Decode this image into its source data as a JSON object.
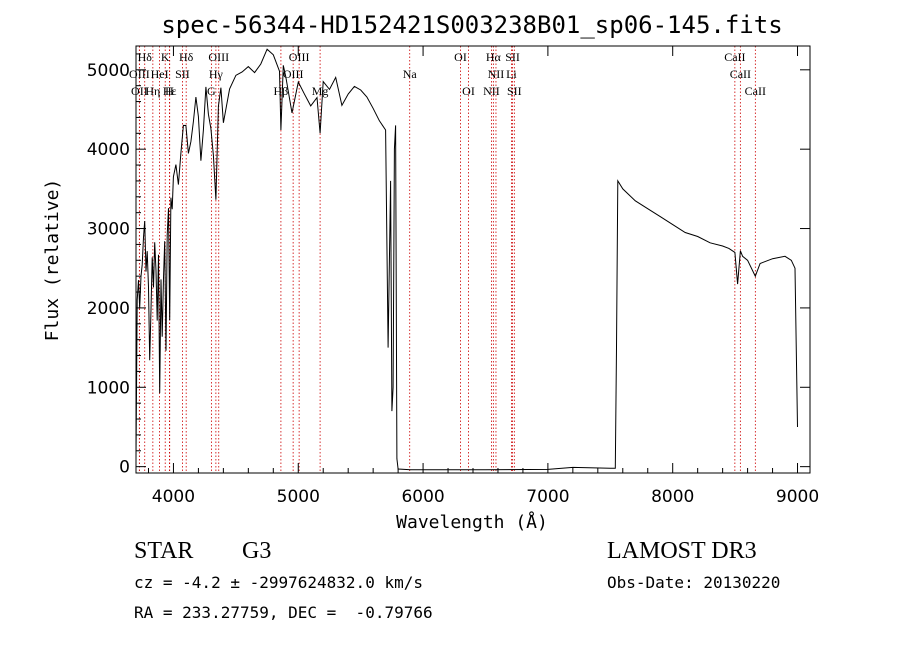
{
  "chart_data": {
    "type": "line",
    "title": "spec-56344-HD152421S003238B01_sp06-145.fits",
    "xlabel": "Wavelength (Å)",
    "ylabel": "Flux (relative)",
    "xlim": [
      3700,
      9100
    ],
    "ylim": [
      -80,
      5300
    ],
    "x_ticks": [
      4000,
      5000,
      6000,
      7000,
      8000,
      9000
    ],
    "y_ticks": [
      0,
      1000,
      2000,
      3000,
      4000,
      5000
    ],
    "grid": false,
    "line_color": "#000000",
    "marker_color": "#cc0000",
    "series": [
      {
        "x": [
          3700,
          3710,
          3720,
          3730,
          3740,
          3750,
          3760,
          3770,
          3780,
          3790,
          3800,
          3810,
          3820,
          3830,
          3840,
          3850,
          3860,
          3870,
          3880,
          3890,
          3900,
          3910,
          3920,
          3930,
          3940,
          3950,
          3960,
          3970,
          3980,
          3990,
          4000,
          4020,
          4040,
          4060,
          4080,
          4100,
          4120,
          4140,
          4160,
          4180,
          4200,
          4220,
          4240,
          4260,
          4280,
          4300,
          4320,
          4340,
          4360,
          4380,
          4400,
          4450,
          4500,
          4550,
          4600,
          4650,
          4700,
          4750,
          4800,
          4850,
          4861,
          4880,
          4900,
          4950,
          5000,
          5050,
          5100,
          5150,
          5175,
          5200,
          5250,
          5300,
          5350,
          5400,
          5450,
          5500,
          5550,
          5600,
          5650,
          5700,
          5720,
          5740,
          5750,
          5760,
          5770,
          5780,
          5790,
          5800,
          5900,
          6000,
          6500,
          7000,
          7200,
          7500,
          7540,
          7550,
          7560,
          7600,
          7700,
          7800,
          7900,
          8000,
          8100,
          8200,
          8300,
          8400,
          8450,
          8498,
          8520,
          8542,
          8560,
          8600,
          8662,
          8700,
          8800,
          8900,
          8950,
          8980,
          9000
        ],
        "y": [
          100,
          2100,
          2350,
          2000,
          2400,
          2600,
          2900,
          3050,
          2400,
          2700,
          2300,
          1400,
          2000,
          2600,
          2200,
          2800,
          2500,
          1900,
          2700,
          900,
          2300,
          1600,
          2400,
          2900,
          1500,
          2900,
          3200,
          1800,
          3400,
          3300,
          3700,
          3800,
          3500,
          3900,
          4300,
          4350,
          4000,
          4100,
          4300,
          4600,
          4400,
          3900,
          4300,
          4800,
          4400,
          4200,
          3900,
          3400,
          4600,
          4800,
          4300,
          4700,
          4900,
          5000,
          5100,
          5000,
          5050,
          5200,
          5150,
          5000,
          4300,
          5100,
          4900,
          4400,
          4800,
          4700,
          4600,
          4700,
          4200,
          4800,
          4700,
          4900,
          4600,
          4750,
          4800,
          4700,
          4600,
          4500,
          4400,
          4300,
          1500,
          3600,
          700,
          1000,
          4000,
          4300,
          100,
          -30,
          -40,
          -40,
          -40,
          -35,
          -10,
          -20,
          -20,
          1500,
          3600,
          3500,
          3350,
          3250,
          3150,
          3050,
          2950,
          2900,
          2820,
          2780,
          2750,
          2700,
          2300,
          2720,
          2650,
          2600,
          2400,
          2560,
          2620,
          2650,
          2600,
          2500,
          500
        ]
      }
    ],
    "lines": [
      {
        "name": "Hδ",
        "x": 3770,
        "row": 0
      },
      {
        "name": "OIII",
        "x": 3727,
        "row": 1
      },
      {
        "name": "OII",
        "x": 3727,
        "row": 2
      },
      {
        "name": "Hε",
        "x": 3970,
        "row": 2
      },
      {
        "name": "HeI",
        "x": 3889,
        "row": 1
      },
      {
        "name": "Hη",
        "x": 3835,
        "row": 2
      },
      {
        "name": "K",
        "x": 3934,
        "row": 0
      },
      {
        "name": "SII",
        "x": 4072,
        "row": 1
      },
      {
        "name": "H",
        "x": 3968,
        "row": 2
      },
      {
        "name": "Hδ",
        "x": 4102,
        "row": 0
      },
      {
        "name": "OIII",
        "x": 4363,
        "row": 0
      },
      {
        "name": "Hγ",
        "x": 4340,
        "row": 1
      },
      {
        "name": "G",
        "x": 4304,
        "row": 2
      },
      {
        "name": "OIII",
        "x": 5007,
        "row": 0
      },
      {
        "name": "OIII",
        "x": 4959,
        "row": 1
      },
      {
        "name": "Hβ",
        "x": 4861,
        "row": 2
      },
      {
        "name": "Mg",
        "x": 5175,
        "row": 2
      },
      {
        "name": "Na",
        "x": 5893,
        "row": 1
      },
      {
        "name": "OI",
        "x": 6300,
        "row": 0
      },
      {
        "name": "OI",
        "x": 6364,
        "row": 2
      },
      {
        "name": "Hα",
        "x": 6563,
        "row": 0
      },
      {
        "name": "NII",
        "x": 6584,
        "row": 1
      },
      {
        "name": "NII",
        "x": 6548,
        "row": 2
      },
      {
        "name": "SII",
        "x": 6717,
        "row": 0
      },
      {
        "name": "Li",
        "x": 6708,
        "row": 1
      },
      {
        "name": "SII",
        "x": 6731,
        "row": 2
      },
      {
        "name": "CaII",
        "x": 8498,
        "row": 0
      },
      {
        "name": "CaII",
        "x": 8542,
        "row": 1
      },
      {
        "name": "CaII",
        "x": 8662,
        "row": 2
      }
    ]
  },
  "info": {
    "class": "STAR",
    "subclass": "G3",
    "survey": "LAMOST DR3",
    "cz": "cz = -4.2 ± -2997624832.0 km/s",
    "obs_date": "Obs-Date: 20130220",
    "coords": "RA = 233.27759, DEC =  -0.79766"
  }
}
